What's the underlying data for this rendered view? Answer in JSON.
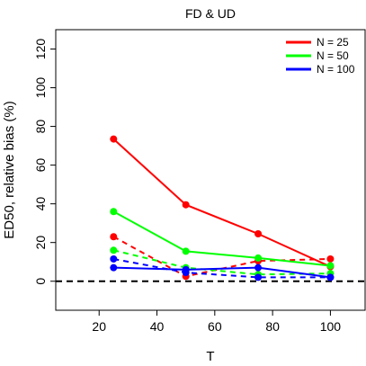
{
  "chart_data": {
    "type": "line",
    "title": "FD  &  UD",
    "xlabel": "T",
    "ylabel": "ED50, relative bias (%)",
    "xlim": [
      5,
      112
    ],
    "ylim": [
      -15,
      130
    ],
    "xticks": [
      20,
      40,
      60,
      80,
      100
    ],
    "yticks": [
      0,
      20,
      40,
      60,
      80,
      100,
      120
    ],
    "x": [
      25,
      50,
      75,
      100
    ],
    "reference_line": {
      "y": 0,
      "style": "dashed",
      "color": "#000000"
    },
    "grid": false,
    "legend_position": "top-right",
    "legend": [
      {
        "label": "N = 25",
        "color": "#ff0000"
      },
      {
        "label": "N = 50",
        "color": "#00ff00"
      },
      {
        "label": "N = 100",
        "color": "#0000ff"
      }
    ],
    "series": [
      {
        "group": "FD",
        "N": "N = 25",
        "color": "#ff0000",
        "linestyle": "solid",
        "values": [
          73.5,
          39.5,
          24.5,
          7.5
        ]
      },
      {
        "group": "UD",
        "N": "N = 25",
        "color": "#ff0000",
        "linestyle": "dashed",
        "values": [
          23,
          2.5,
          10.5,
          11.5
        ]
      },
      {
        "group": "FD",
        "N": "N = 50",
        "color": "#00ff00",
        "linestyle": "solid",
        "values": [
          36,
          15.5,
          12,
          8
        ]
      },
      {
        "group": "UD",
        "N": "N = 50",
        "color": "#00ff00",
        "linestyle": "dashed",
        "values": [
          16,
          7,
          3.5,
          4
        ]
      },
      {
        "group": "FD",
        "N": "N = 100",
        "color": "#0000ff",
        "linestyle": "solid",
        "values": [
          7,
          6,
          7,
          2
        ]
      },
      {
        "group": "UD",
        "N": "N = 100",
        "color": "#0000ff",
        "linestyle": "dashed",
        "values": [
          11.5,
          4.5,
          2,
          2
        ]
      }
    ]
  }
}
